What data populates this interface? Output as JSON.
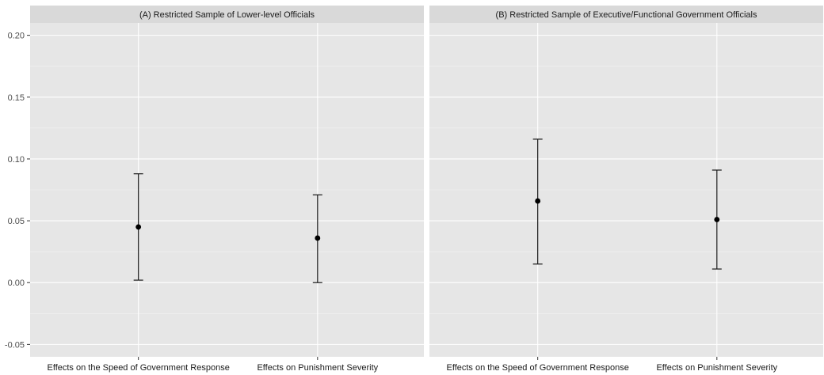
{
  "chart_data": {
    "type": "errorbar",
    "ylim": [
      -0.06,
      0.21
    ],
    "yticks": [
      -0.05,
      0.0,
      0.05,
      0.1,
      0.15,
      0.2
    ],
    "ytick_labels": [
      "-0.05",
      "0.00",
      "0.05",
      "0.10",
      "0.15",
      "0.20"
    ],
    "categories": [
      "Effects on the Speed of Government Response",
      "Effects on Punishment Severity"
    ],
    "grid": true,
    "panels": [
      {
        "title": "(A) Restricted Sample of Lower-level Officials",
        "points": [
          {
            "estimate": 0.045,
            "lower": 0.002,
            "upper": 0.088
          },
          {
            "estimate": 0.036,
            "lower": 0.0,
            "upper": 0.071
          }
        ]
      },
      {
        "title": "(B) Restricted Sample of Executive/Functional Government Officials",
        "points": [
          {
            "estimate": 0.066,
            "lower": 0.015,
            "upper": 0.116
          },
          {
            "estimate": 0.051,
            "lower": 0.011,
            "upper": 0.091
          }
        ]
      }
    ]
  }
}
